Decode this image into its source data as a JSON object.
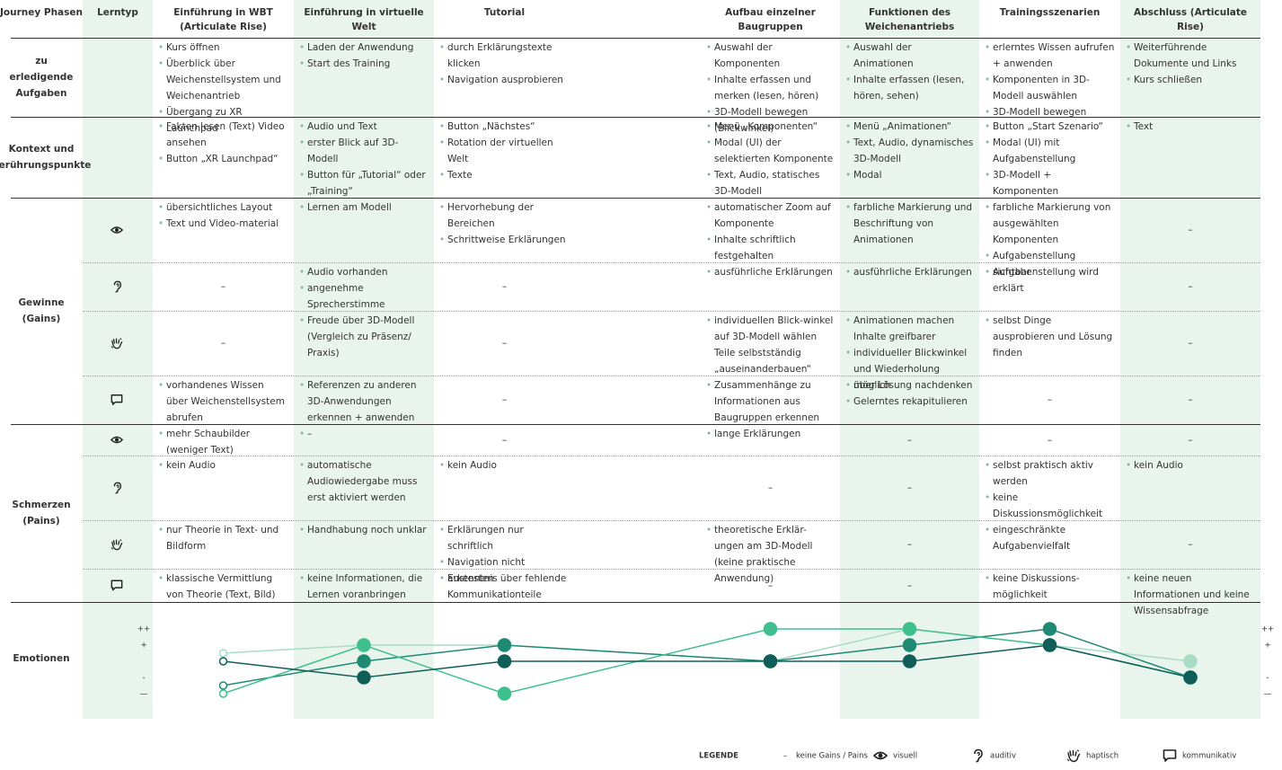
{
  "table": {
    "headers": [
      "Journey Phasen",
      "Lerntyp",
      "Einführung in WBT (Articulate Rise)",
      "Einführung in virtuelle Welt",
      "Tutorial",
      "Aufbau einzelner Baugruppen",
      "Funktionen des Weichenantriebs",
      "Trainingsszenarien",
      "Abschluss (Articulate Rise)"
    ],
    "rows": [
      {
        "label": "zu erledigende Aufgaben",
        "cells": [
          [
            "Kurs öffnen",
            "Überblick über Weichenstellsystem und Weichenantrieb",
            "Übergang zu XR Launchpad"
          ],
          [
            "Laden der Anwendung",
            "Start des Training"
          ],
          [
            "durch Erklärungstexte klicken",
            "Navigation ausprobieren"
          ],
          [
            "Auswahl der Komponenten",
            "Inhalte erfassen und merken (lesen, hören)",
            "3D-Modell bewegen (Blickwinkel)"
          ],
          [
            "Auswahl der Animationen",
            "Inhalte erfassen (lesen, hören, sehen)"
          ],
          [
            "erlerntes Wissen aufrufen + anwenden",
            "Komponenten in 3D-Modell auswählen",
            "3D-Modell bewegen"
          ],
          [
            "Weiterführende Dokumente und Links",
            "Kurs schließen"
          ]
        ]
      },
      {
        "label": "Kontext und Berührungspunkte",
        "cells": [
          [
            "Fakten lesen (Text) Video ansehen",
            "Button „XR Launchpad“"
          ],
          [
            "Audio und Text",
            "erster Blick auf 3D-Modell",
            "Button für „Tutorial“ oder „Training“"
          ],
          [
            "Button „Nächstes“",
            "Rotation der virtuellen Welt",
            "Texte"
          ],
          [
            "Menü „Komponenten“",
            "Modal (UI) der selektierten Komponente",
            "Text, Audio, statisches 3D-Modell"
          ],
          [
            "Menü „Animationen“",
            "Text, Audio, dynamisches 3D-Modell",
            "Modal"
          ],
          [
            "Button „Start Szenario“",
            "Modal (UI) mit Aufgabenstellung",
            "3D-Modell + Komponenten"
          ],
          [
            "Text"
          ]
        ]
      }
    ],
    "sections": [
      {
        "label": "Gewinne (Gains)",
        "rows": [
          {
            "cells": [
              [
                "übersichtliches Layout",
                "Text und Video-material"
              ],
              [
                "Lernen am Modell"
              ],
              [
                "Hervorhebung der Bereichen",
                "Schrittweise Erklärungen"
              ],
              [
                "automatischer Zoom auf Komponente",
                "Inhalte schriftlich festgehalten"
              ],
              [
                "farbliche Markierung und Beschriftung von Animationen"
              ],
              [
                "farbliche Markierung von ausgewählten Komponenten",
                "Aufgabenstellung sichtbar"
              ],
              "–"
            ]
          },
          {
            "cells": [
              "–",
              [
                "Audio vorhanden",
                "angenehme Sprecherstimme"
              ],
              "–",
              [
                "ausführliche Erklärungen"
              ],
              [
                "ausführliche Erklärungen"
              ],
              [
                "Aufgabenstellung wird erklärt"
              ],
              "–"
            ]
          },
          {
            "cells": [
              "–",
              [
                "Freude über 3D-Modell (Vergleich zu Präsenz/ Praxis)"
              ],
              "–",
              [
                "individuellen Blick-winkel auf 3D-Modell wählen Teile selbstständig „auseinanderbauen“"
              ],
              [
                "Animationen machen Inhalte greifbarer",
                "individueller Blickwinkel und Wiederholung möglich"
              ],
              [
                "selbst Dinge ausprobieren und Lösung finden"
              ],
              "–"
            ]
          },
          {
            "cells": [
              [
                "vorhandenes Wissen über Weichenstellsystem abrufen"
              ],
              [
                "Referenzen zu anderen 3D-Anwendungen erkennen + anwenden"
              ],
              "–",
              [
                "Zusammenhänge zu Informationen aus Baugruppen erkennen"
              ],
              [
                "über Lösung nachdenken",
                "Gelerntes rekapitulieren"
              ],
              "–",
              "–"
            ]
          }
        ]
      },
      {
        "label": "Schmerzen (Pains)",
        "rows": [
          {
            "cells": [
              [
                "mehr Schaubilder (weniger Text)"
              ],
              [
                "–"
              ],
              "–",
              [
                "lange Erklärungen"
              ],
              "–",
              "–",
              "–"
            ]
          },
          {
            "cells": [
              [
                "kein Audio"
              ],
              [
                "automatische Audiowiedergabe muss erst aktiviert werden"
              ],
              [
                "kein Audio"
              ],
              "–",
              "–",
              [
                "selbst praktisch aktiv werden",
                "keine Diskussionsmöglichkeit"
              ],
              [
                "kein Audio"
              ]
            ]
          },
          {
            "cells": [
              [
                "nur Theorie in Text- und Bildform"
              ],
              [
                "Handhabung noch unklar"
              ],
              [
                "Erklärungen nur schriftlich",
                "Navigation nicht austesten"
              ],
              [
                "theoretische Erklär-ungen am 3D-Modell (keine praktische Anwendung)"
              ],
              "–",
              [
                "eingeschränkte Aufgabenvielfalt"
              ],
              "–"
            ]
          },
          {
            "cells": [
              [
                "klassische Vermittlung von Theorie (Text, Bild)"
              ],
              [
                "keine Informationen, die Lernen voranbringen"
              ],
              [
                "Erkenntnis über fehlende Kommunikationteile"
              ],
              "–",
              "–",
              [
                "keine Diskussions-möglichkeit"
              ],
              [
                "keine neuen Informationen und keine Wissensabfrage"
              ]
            ]
          }
        ]
      }
    ],
    "emotions_label": "Emotionen"
  },
  "chart_data": {
    "type": "line",
    "ylim": [
      -2.5,
      2.5
    ],
    "yticks": [
      {
        "value": 2,
        "label": "++"
      },
      {
        "value": 1,
        "label": "+"
      },
      {
        "value": -1,
        "label": "-"
      },
      {
        "value": -2,
        "label": "—"
      }
    ],
    "series": [
      {
        "name": "visuell",
        "color": "#a9dcc5",
        "values": [
          0.5,
          1,
          1,
          0,
          2,
          1,
          0
        ]
      },
      {
        "name": "auditiv",
        "color": "#1f8a74",
        "values": [
          -1.5,
          0,
          1,
          0,
          1,
          2,
          -1
        ]
      },
      {
        "name": "haptisch",
        "color": "#3fbf8e",
        "values": [
          -2,
          1,
          -2,
          2,
          2,
          1,
          -1
        ]
      },
      {
        "name": "kommunikativ",
        "color": "#0f5f58",
        "values": [
          0,
          -1,
          0,
          0,
          0,
          1,
          -1
        ]
      }
    ]
  },
  "legend": {
    "title": "LEGENDE",
    "dash": "–",
    "none": "keine Gains / Pains"
  }
}
